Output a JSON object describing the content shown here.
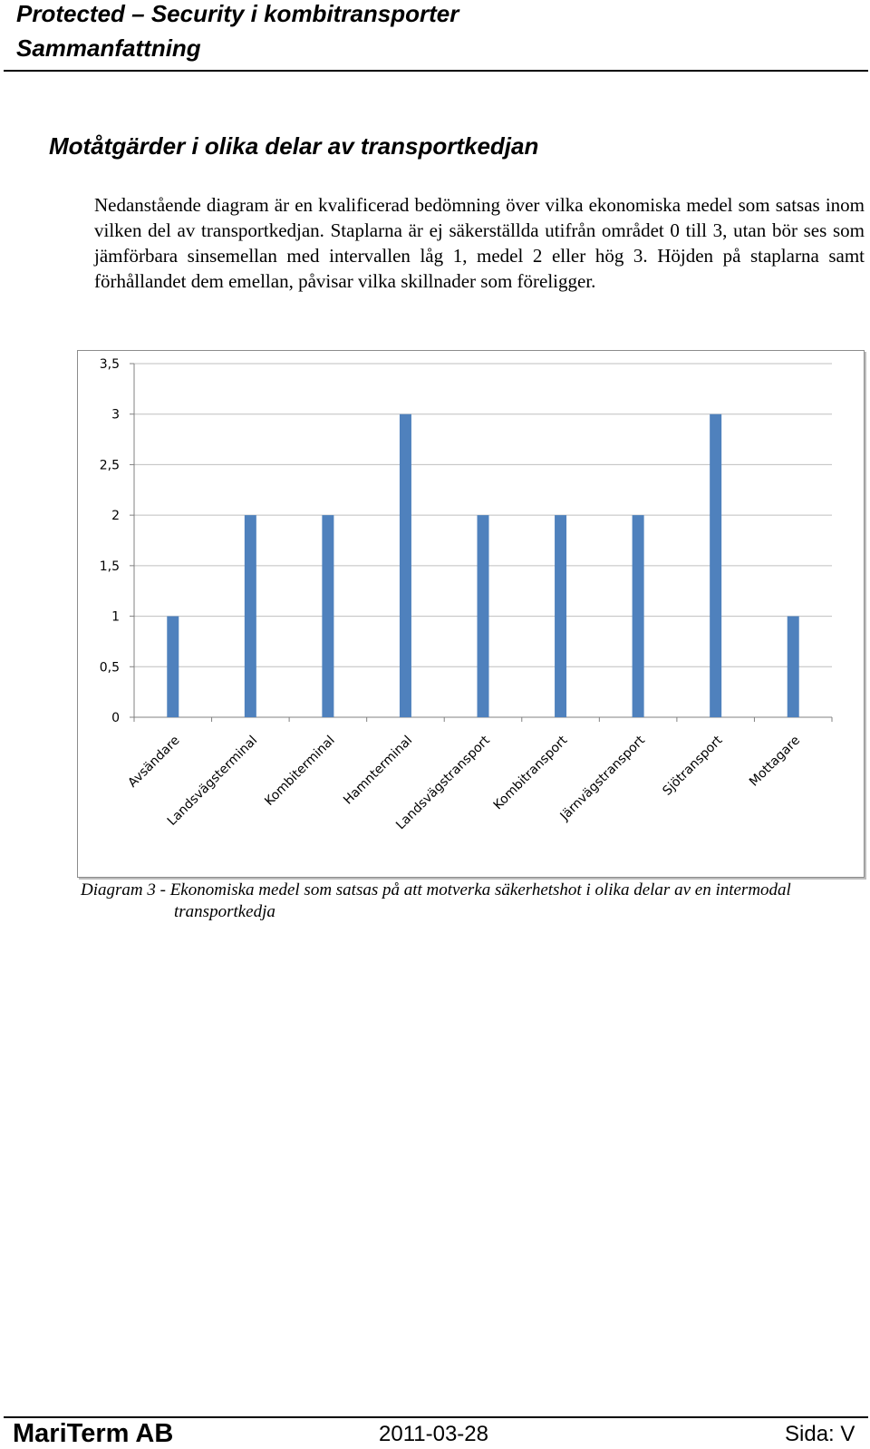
{
  "header": {
    "title_line1": "Protected – Security i kombitransporter",
    "title_line2": "Sammanfattning"
  },
  "section": {
    "title": "Motåtgärder i olika delar av transportkedjan",
    "paragraph": "Nedanstående diagram är en kvalificerad bedömning över vilka ekonomiska medel som satsas inom vilken del av transportkedjan. Staplarna är ej säkerställda utifrån området 0 till 3, utan bör ses som jämförbara sinsemellan med intervallen låg 1, medel 2 eller hög 3. Höjden på staplarna samt förhållandet dem emellan, påvisar vilka skillnader som föreligger."
  },
  "chart_data": {
    "type": "bar",
    "categories": [
      "Avsändare",
      "Landsvägsterminal",
      "Kombiterminal",
      "Hamnterminal",
      "Landsvägstransport",
      "Kombitransport",
      "Järnvägstransport",
      "Sjötransport",
      "Mottagare"
    ],
    "values": [
      1,
      2,
      2,
      3,
      2,
      2,
      2,
      3,
      1
    ],
    "yticks": [
      "0",
      "0,5",
      "1",
      "1,5",
      "2",
      "2,5",
      "3",
      "3,5"
    ],
    "ylim": [
      0,
      3.5
    ],
    "grid": true,
    "legend": "none",
    "bar_color": "#4F81BD",
    "grid_color": "#BFBFBF",
    "axis_color": "#808080",
    "title": "",
    "xlabel": "",
    "ylabel": ""
  },
  "caption": "Diagram 3 - Ekonomiska medel som satsas på att motverka säkerhetshot i olika delar av en intermodal transportkedja",
  "footer": {
    "company": "MariTerm AB",
    "date": "2011-03-28",
    "page": "Sida: V"
  }
}
